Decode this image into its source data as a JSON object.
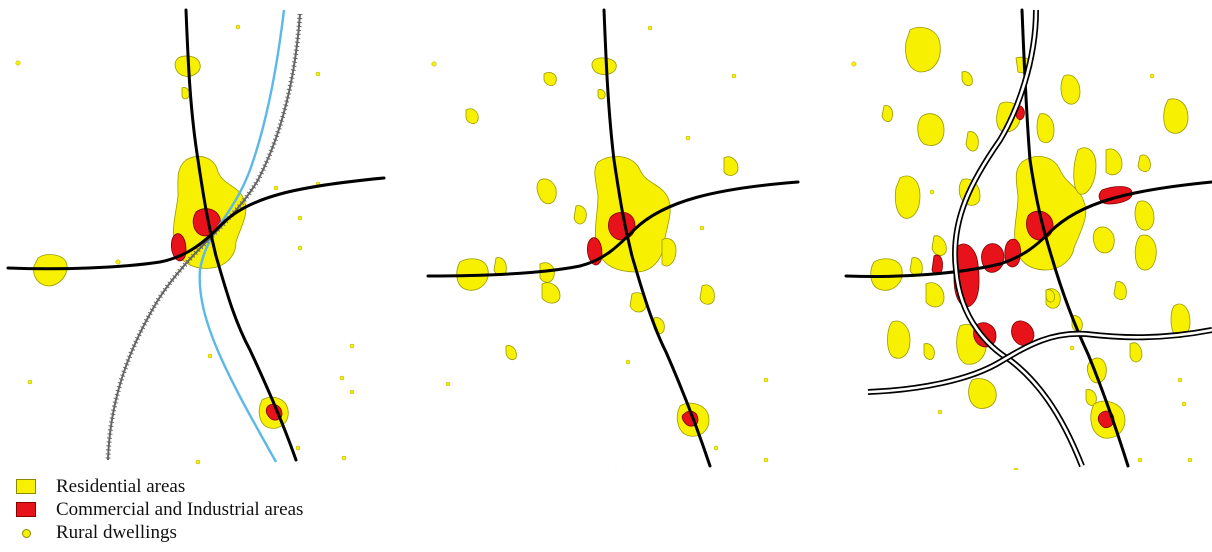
{
  "legend": {
    "residential": "Residential areas",
    "commercial": "Commercial and Industrial areas",
    "rural": "Rural dwellings"
  },
  "colors": {
    "residential": "#f7f000",
    "commercial": "#e8131a",
    "road": "#000000",
    "river": "#5bb8e8",
    "railway": "#555555"
  },
  "panels": [
    {
      "stage": 1,
      "features": [
        "residential",
        "commercial",
        "rural",
        "road",
        "river",
        "railway"
      ]
    },
    {
      "stage": 2,
      "features": [
        "residential",
        "commercial",
        "rural",
        "road"
      ]
    },
    {
      "stage": 3,
      "features": [
        "residential",
        "commercial",
        "rural",
        "road",
        "motorway"
      ]
    }
  ]
}
